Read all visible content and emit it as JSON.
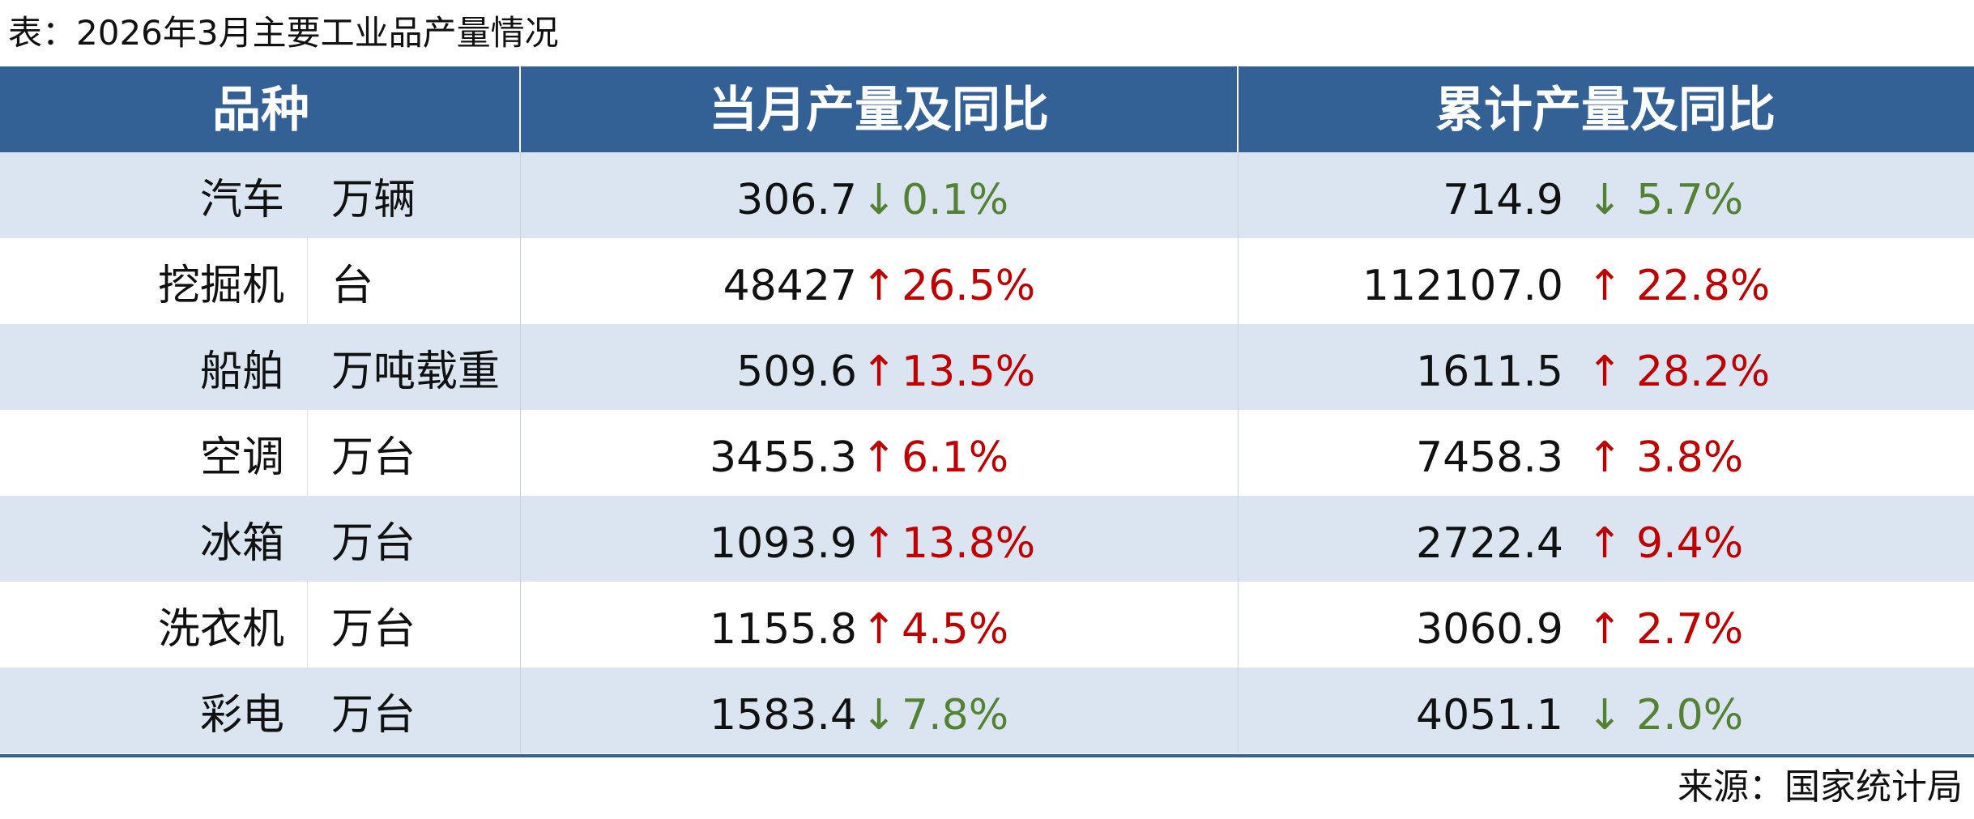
{
  "title": "表：2026年3月主要工业品产量情况",
  "table": {
    "header": [
      "品种",
      "当月产量及同比",
      "累计产量及同比"
    ],
    "rows": [
      {
        "name": "汽车",
        "unit": "万辆",
        "monthly": {
          "value": "306.7",
          "arrow": "↓",
          "change": "0.1%",
          "color": "#548235"
        },
        "cumulative": {
          "value": "714.9",
          "arrow": "↓",
          "change": "5.7%",
          "color": "#548235"
        }
      },
      {
        "name": "挖掘机",
        "unit": "台",
        "monthly": {
          "value": "48427",
          "arrow": "↑",
          "change": "26.5%",
          "color": "#c00000"
        },
        "cumulative": {
          "value": "112107.0",
          "arrow": "↑",
          "change": "22.8%",
          "color": "#c00000"
        }
      },
      {
        "name": "船舶",
        "unit": "万吨载重",
        "monthly": {
          "value": "509.6",
          "arrow": "↑",
          "change": "13.5%",
          "color": "#c00000"
        },
        "cumulative": {
          "value": "1611.5",
          "arrow": "↑",
          "change": "28.2%",
          "color": "#c00000"
        }
      },
      {
        "name": "空调",
        "unit": "万台",
        "monthly": {
          "value": "3455.3",
          "arrow": "↑",
          "change": "6.1%",
          "color": "#c00000"
        },
        "cumulative": {
          "value": "7458.3",
          "arrow": "↑",
          "change": "3.8%",
          "color": "#c00000"
        }
      },
      {
        "name": "冰箱",
        "unit": "万台",
        "monthly": {
          "value": "1093.9",
          "arrow": "↑",
          "change": "13.8%",
          "color": "#c00000"
        },
        "cumulative": {
          "value": "2722.4",
          "arrow": "↑",
          "change": "9.4%",
          "color": "#c00000"
        }
      },
      {
        "name": "洗衣机",
        "unit": "万台",
        "monthly": {
          "value": "1155.8",
          "arrow": "↑",
          "change": "4.5%",
          "color": "#c00000"
        },
        "cumulative": {
          "value": "3060.9",
          "arrow": "↑",
          "change": "2.7%",
          "color": "#c00000"
        }
      },
      {
        "name": "彩电",
        "unit": "万台",
        "monthly": {
          "value": "1583.4",
          "arrow": "↓",
          "change": "7.8%",
          "color": "#548235"
        },
        "cumulative": {
          "value": "4051.1",
          "arrow": "↓",
          "change": "2.0%",
          "color": "#548235"
        }
      }
    ]
  },
  "source": "来源：国家统计局"
}
